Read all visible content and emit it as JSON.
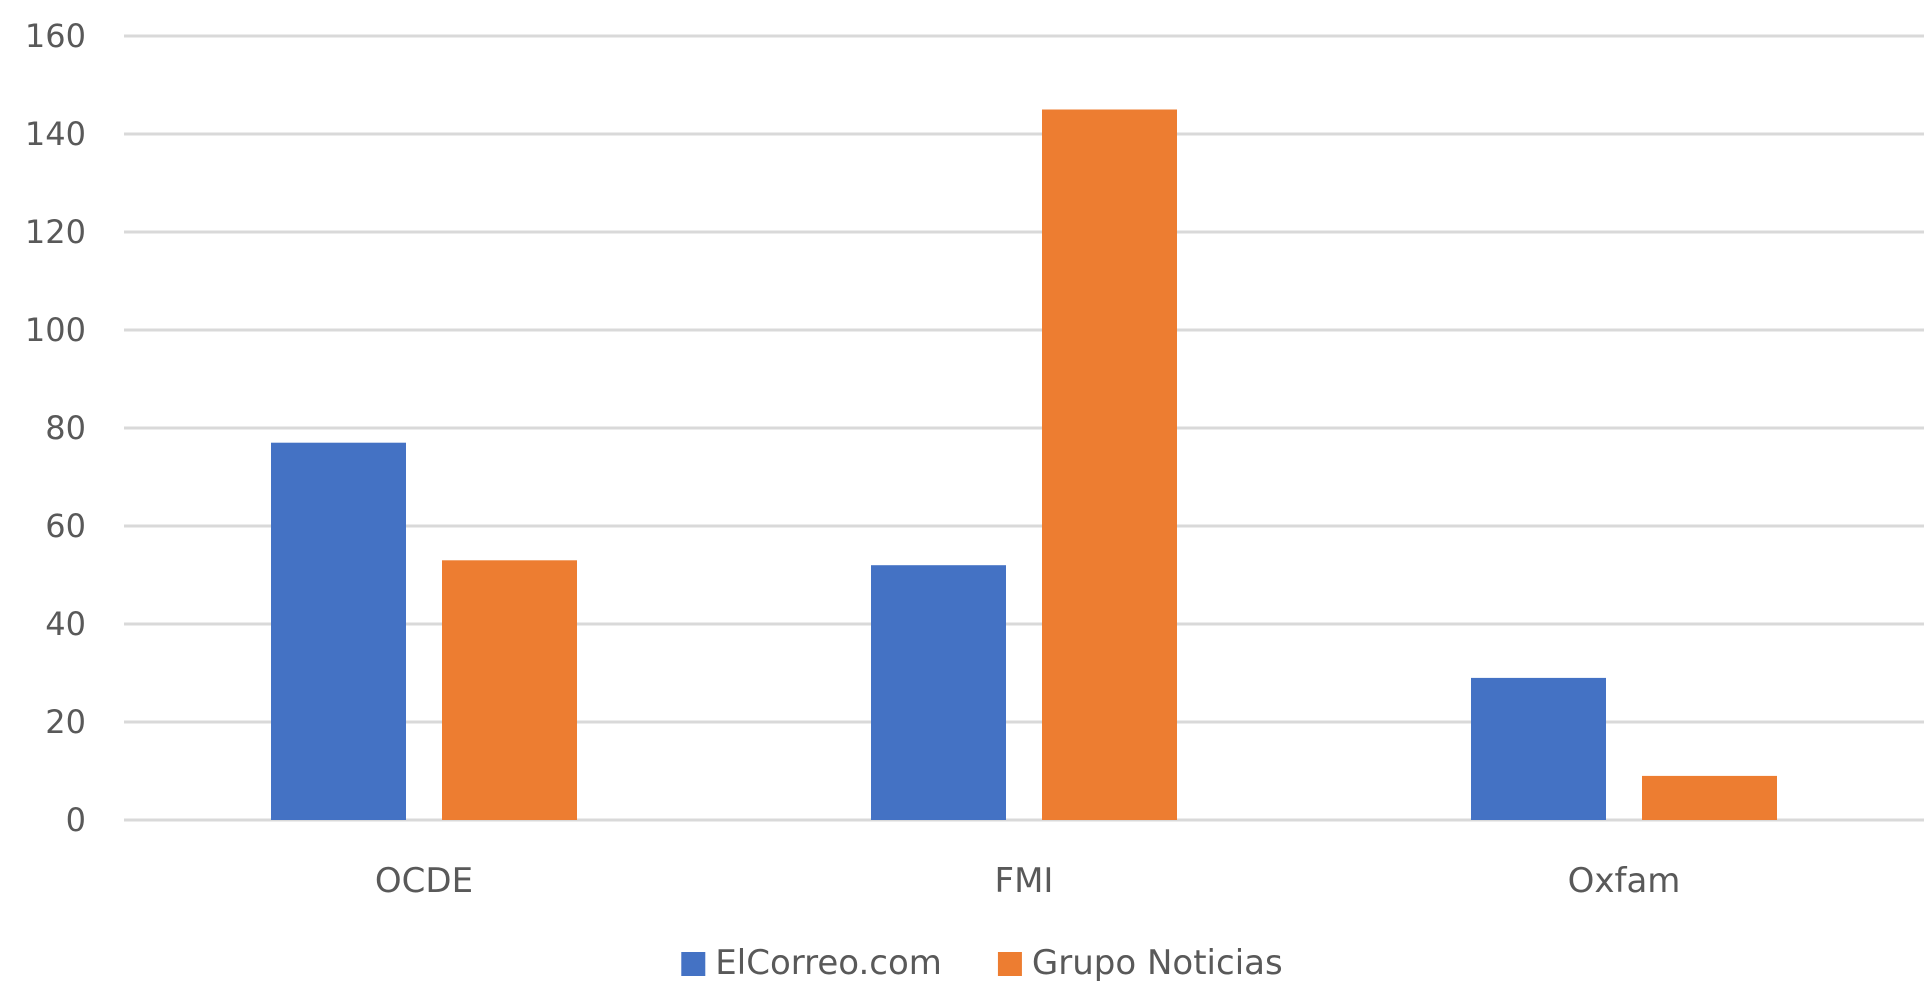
{
  "chart_data": {
    "type": "bar",
    "title": "",
    "xlabel": "",
    "ylabel": "",
    "categories": [
      "OCDE",
      "FMI",
      "Oxfam"
    ],
    "series": [
      {
        "name": "ElCorreo.com",
        "color": "#4472c4",
        "values": [
          77,
          52,
          29
        ]
      },
      {
        "name": "Grupo Noticias",
        "color": "#ed7d31",
        "values": [
          53,
          145,
          9
        ]
      }
    ],
    "ylim": [
      0,
      160
    ],
    "yticks": [
      0,
      20,
      40,
      60,
      80,
      100,
      120,
      140,
      160
    ],
    "grid": true,
    "legend_position": "bottom-center"
  }
}
